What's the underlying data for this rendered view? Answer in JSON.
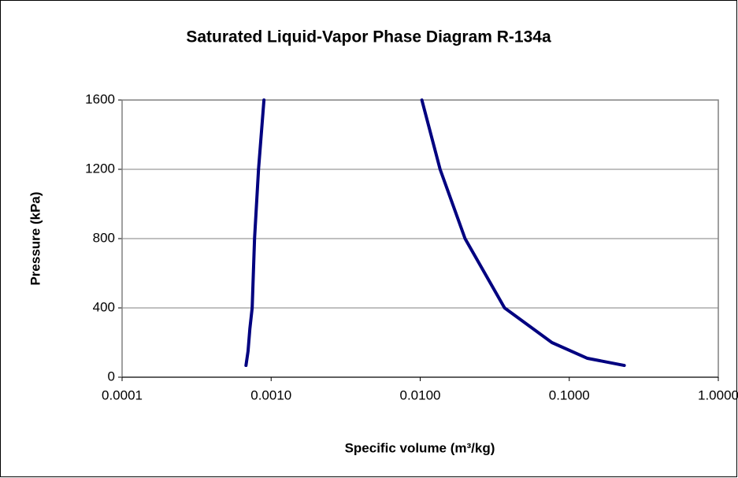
{
  "chart_data": {
    "type": "line",
    "title": "Saturated Liquid-Vapor Phase Diagram R-134a",
    "xlabel": "Specific volume (m³/kg)",
    "ylabel": "Pressure (kPa)",
    "xscale": "log",
    "xlim": [
      0.0001,
      1
    ],
    "ylim": [
      0,
      1600
    ],
    "xticks": [
      0.0001,
      {
        "value": 0.001,
        "label": "0.0010"
      },
      {
        "value": 0.01,
        "label": "0.0100"
      },
      {
        "value": 0.1,
        "label": "0.1000"
      },
      {
        "value": 1,
        "label": "1.0000"
      }
    ],
    "yticks": [
      0,
      400,
      800,
      1200,
      1600
    ],
    "grid": true,
    "series": [
      {
        "color": "#000080",
        "x": [
          0.000678,
          0.0007,
          0.00072,
          0.000746,
          0.000774,
          0.000823,
          0.000895
        ],
        "values": [
          68,
          150,
          280,
          400,
          800,
          1200,
          1600
        ]
      },
      {
        "color": "#000080",
        "x": [
          0.01026,
          0.0136,
          0.02,
          0.0368,
          0.0765,
          0.1324,
          0.234
        ],
        "values": [
          1600,
          1200,
          800,
          400,
          200,
          109,
          68
        ]
      }
    ]
  }
}
